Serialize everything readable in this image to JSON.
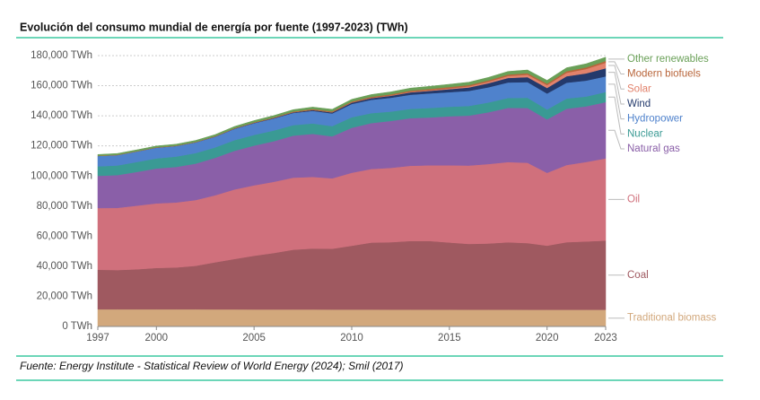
{
  "chart_data": {
    "type": "stacked_area",
    "title": "Evolución del consumo mundial de energía por fuente (1997-2023) (TWh)",
    "source": "Fuente: Energy Institute - Statistical Review of World Energy (2024); Smil (2017)",
    "x": [
      1997,
      1998,
      1999,
      2000,
      2001,
      2002,
      2003,
      2004,
      2005,
      2006,
      2007,
      2008,
      2009,
      2010,
      2011,
      2012,
      2013,
      2014,
      2015,
      2016,
      2017,
      2018,
      2019,
      2020,
      2021,
      2022,
      2023
    ],
    "xlim": [
      1997,
      2023
    ],
    "xticks": [
      1997,
      2000,
      2005,
      2010,
      2015,
      2020,
      2023
    ],
    "ylim": [
      0,
      180000
    ],
    "yticks": [
      {
        "value": 0,
        "label": "0 TWh"
      },
      {
        "value": 20000,
        "label": "20,000 TWh"
      },
      {
        "value": 40000,
        "label": "40,000 TWh"
      },
      {
        "value": 60000,
        "label": "60,000 TWh"
      },
      {
        "value": 80000,
        "label": "80,000 TWh"
      },
      {
        "value": 100000,
        "label": "100,000 TWh"
      },
      {
        "value": 120000,
        "label": "120,000 TWh"
      },
      {
        "value": 140000,
        "label": "140,000 TWh"
      },
      {
        "value": 160000,
        "label": "160,000 TWh"
      },
      {
        "value": 180000,
        "label": "180,000 TWh"
      }
    ],
    "grid": true,
    "series": [
      {
        "name": "Traditional biomass",
        "color": "#d2a87c",
        "values": [
          11400,
          11400,
          11400,
          11400,
          11400,
          11400,
          11350,
          11350,
          11300,
          11300,
          11300,
          11300,
          11250,
          11250,
          11250,
          11200,
          11200,
          11200,
          11200,
          11150,
          11150,
          11150,
          11100,
          11100,
          11100,
          11100,
          11100
        ]
      },
      {
        "name": "Coal",
        "color": "#9f5960",
        "values": [
          26300,
          26100,
          26600,
          27500,
          27800,
          28900,
          31300,
          33500,
          35700,
          37500,
          39700,
          40500,
          40400,
          42400,
          44500,
          44800,
          45600,
          45600,
          44600,
          43700,
          44000,
          44800,
          44300,
          42600,
          44900,
          45400,
          46000
        ]
      },
      {
        "name": "Oil",
        "color": "#d0707c",
        "values": [
          41000,
          41300,
          42300,
          42900,
          43200,
          43700,
          44500,
          46200,
          46800,
          47300,
          47900,
          47600,
          46800,
          48500,
          48900,
          49400,
          50000,
          50300,
          51300,
          52100,
          52800,
          53300,
          53400,
          48400,
          51300,
          52800,
          54600
        ]
      },
      {
        "name": "Natural gas",
        "color": "#8a5fa8",
        "values": [
          21400,
          21800,
          22400,
          23200,
          23600,
          24200,
          24900,
          25700,
          26400,
          27000,
          27900,
          28600,
          27900,
          29900,
          30500,
          31200,
          31600,
          31800,
          32600,
          33200,
          34400,
          36000,
          36400,
          35500,
          37400,
          37000,
          37400
        ]
      },
      {
        "name": "Nuclear",
        "color": "#3a9a94",
        "values": [
          6300,
          6400,
          6600,
          6700,
          6900,
          7000,
          6900,
          7100,
          7100,
          7100,
          7000,
          6900,
          6800,
          7000,
          6600,
          6200,
          6200,
          6300,
          6300,
          6400,
          6500,
          6600,
          6800,
          6600,
          6800,
          6500,
          6700
        ]
      },
      {
        "name": "Hydropower",
        "color": "#4f82cc",
        "values": [
          6900,
          6900,
          7000,
          7100,
          7000,
          7100,
          7100,
          7500,
          7800,
          8000,
          8100,
          8400,
          8400,
          8800,
          8900,
          9200,
          9400,
          9700,
          9700,
          10000,
          10100,
          10300,
          10400,
          10600,
          10500,
          10600,
          10400
        ]
      },
      {
        "name": "Wind",
        "color": "#243a6c",
        "values": [
          30,
          50,
          60,
          80,
          100,
          130,
          160,
          220,
          270,
          340,
          440,
          570,
          730,
          900,
          1100,
          1300,
          1600,
          1700,
          2000,
          2300,
          2700,
          3000,
          3300,
          3700,
          4300,
          4800,
          5400
        ]
      },
      {
        "name": "Solar",
        "color": "#e2826c",
        "values": [
          2,
          2,
          3,
          3,
          3,
          4,
          5,
          7,
          10,
          13,
          20,
          30,
          50,
          80,
          160,
          240,
          320,
          420,
          560,
          720,
          1000,
          1300,
          1600,
          1900,
          2300,
          2900,
          3700
        ]
      },
      {
        "name": "Modern biofuels",
        "color": "#b8653a",
        "values": [
          150,
          150,
          150,
          160,
          170,
          190,
          220,
          250,
          300,
          370,
          460,
          580,
          620,
          680,
          700,
          760,
          800,
          850,
          870,
          880,
          920,
          980,
          1040,
          970,
          1040,
          1090,
          1150
        ]
      },
      {
        "name": "Other renewables",
        "color": "#6aa058",
        "values": [
          800,
          850,
          880,
          920,
          950,
          1000,
          1050,
          1100,
          1150,
          1200,
          1260,
          1320,
          1380,
          1450,
          1520,
          1600,
          1680,
          1750,
          1830,
          1900,
          1980,
          2050,
          2130,
          2200,
          2300,
          2400,
          2500
        ]
      }
    ]
  }
}
